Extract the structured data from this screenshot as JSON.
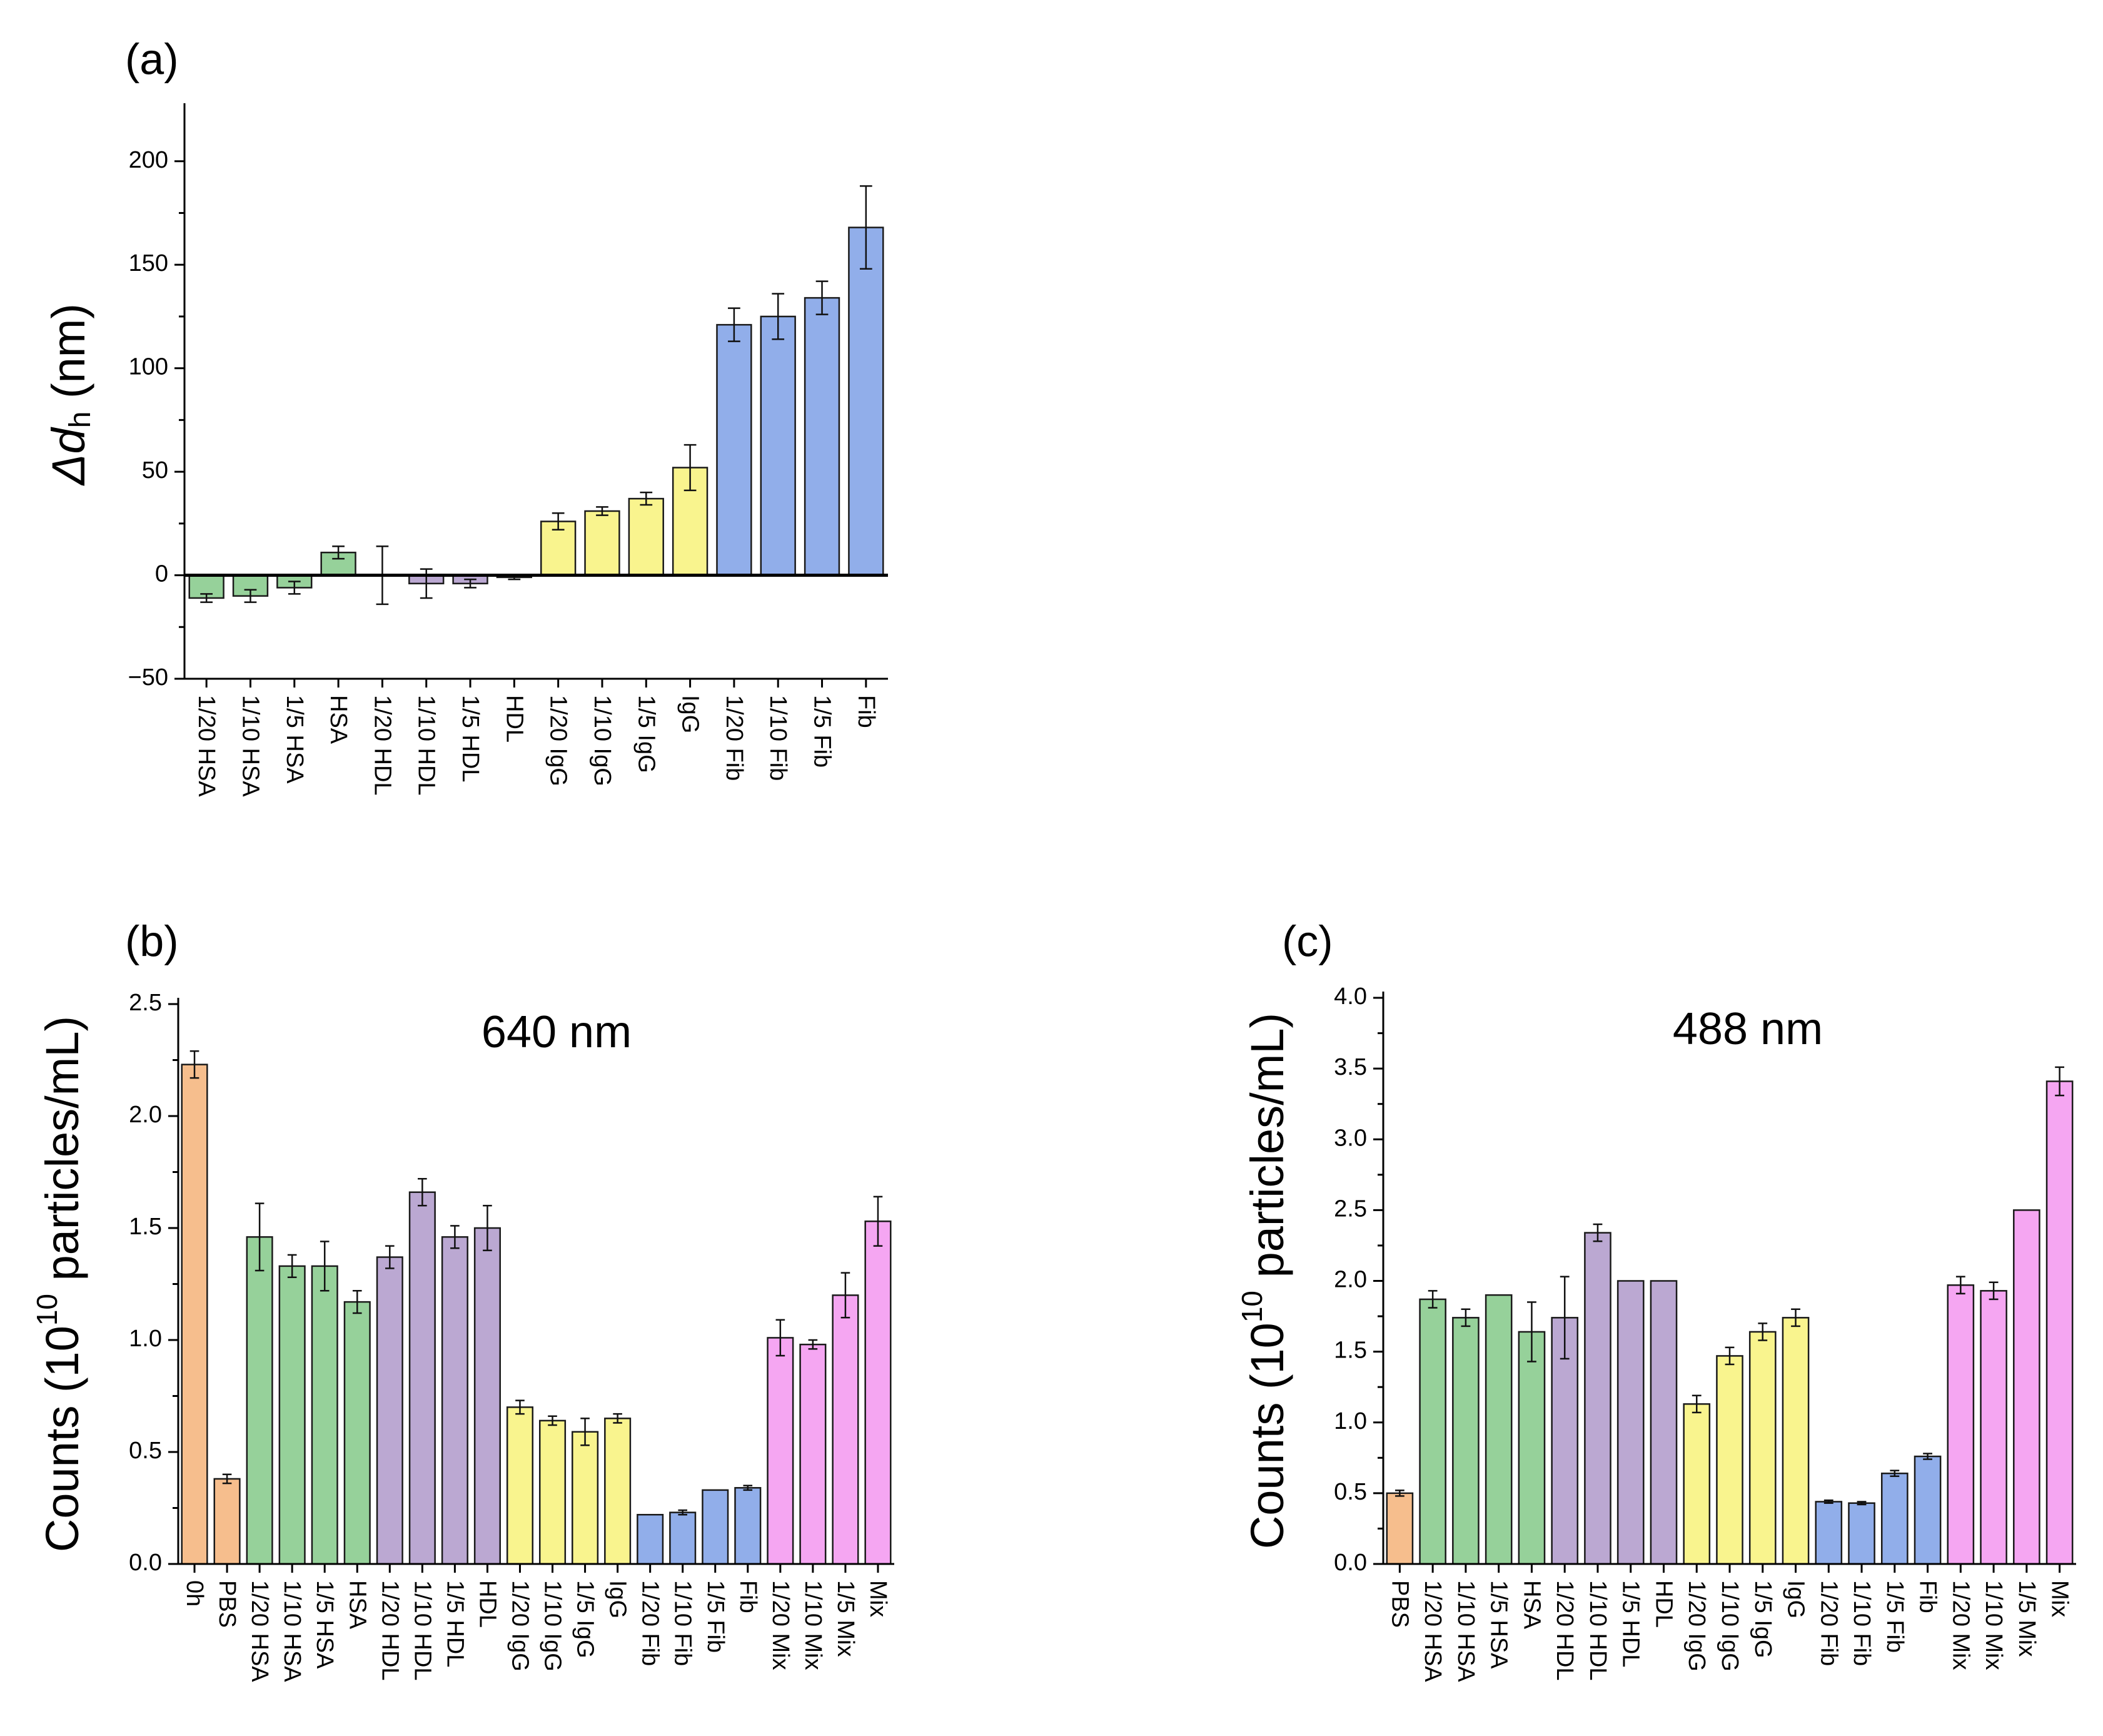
{
  "colors": {
    "orange": "#F6BE8D",
    "green": "#96D19A",
    "purple": "#BBA8D2",
    "yellow": "#F9F48E",
    "blue": "#91AEEA",
    "pink": "#F5A6F2"
  },
  "chart_data": [
    {
      "id": "a",
      "panel_label": "(a)",
      "type": "bar",
      "title": "",
      "xlabel": "",
      "ylabel": "Δd_h (nm)",
      "ylabel_parts": {
        "delta": "Δ",
        "var": "d",
        "sub": "h",
        "unit": " (nm)"
      },
      "ylim": [
        -50,
        225
      ],
      "yticks": [
        -50,
        0,
        50,
        100,
        150,
        200
      ],
      "ytick_labels": [
        "−50",
        "0",
        "50",
        "100",
        "150",
        "200"
      ],
      "zero_line": true,
      "categories": [
        "1/20 HSA",
        "1/10 HSA",
        "1/5 HSA",
        "HSA",
        "1/20 HDL",
        "1/10 HDL",
        "1/5 HDL",
        "HDL",
        "1/20 IgG",
        "1/10 IgG",
        "1/5 IgG",
        "IgG",
        "1/20 Fib",
        "1/10 Fib",
        "1/5 Fib",
        "Fib"
      ],
      "values": [
        -11,
        -10,
        -6,
        11,
        0,
        -4,
        -4,
        -1,
        26,
        31,
        37,
        52,
        121,
        125,
        134,
        168
      ],
      "errors": [
        2,
        3,
        3,
        3,
        14,
        7,
        2,
        1,
        4,
        2,
        3,
        11,
        8,
        11,
        8,
        20
      ],
      "colors": [
        "green",
        "green",
        "green",
        "green",
        "purple",
        "purple",
        "purple",
        "purple",
        "yellow",
        "yellow",
        "yellow",
        "yellow",
        "blue",
        "blue",
        "blue",
        "blue"
      ]
    },
    {
      "id": "b",
      "panel_label": "(b)",
      "type": "bar",
      "title": "640 nm",
      "xlabel": "",
      "ylabel": "Counts (10^10 particles/mL)",
      "ylabel_parts": {
        "pre": "Counts (10",
        "sup": "10",
        "post": " particles/mL)"
      },
      "ylim": [
        0,
        2.5
      ],
      "yticks": [
        0,
        0.5,
        1.0,
        1.5,
        2.0,
        2.5
      ],
      "ytick_labels": [
        "0.0",
        "0.5",
        "1.0",
        "1.5",
        "2.0",
        "2.5"
      ],
      "zero_line": false,
      "categories": [
        "0h",
        "PBS",
        "1/20 HSA",
        "1/10 HSA",
        "1/5 HSA",
        "HSA",
        "1/20 HDL",
        "1/10 HDL",
        "1/5 HDL",
        "HDL",
        "1/20 IgG",
        "1/10 IgG",
        "1/5 IgG",
        "IgG",
        "1/20 Fib",
        "1/10 Fib",
        "1/5 Fib",
        "Fib",
        "1/20 Mix",
        "1/10 Mix",
        "1/5 Mix",
        "Mix"
      ],
      "values": [
        2.23,
        0.38,
        1.46,
        1.33,
        1.33,
        1.17,
        1.37,
        1.66,
        1.46,
        1.5,
        0.7,
        0.64,
        0.59,
        0.65,
        0.22,
        0.23,
        0.33,
        0.34,
        1.01,
        0.98,
        1.2,
        1.53
      ],
      "errors": [
        0.06,
        0.02,
        0.15,
        0.05,
        0.11,
        0.05,
        0.05,
        0.06,
        0.05,
        0.1,
        0.03,
        0.02,
        0.06,
        0.02,
        0.0,
        0.01,
        0.0,
        0.01,
        0.08,
        0.02,
        0.1,
        0.11
      ],
      "colors": [
        "orange",
        "orange",
        "green",
        "green",
        "green",
        "green",
        "purple",
        "purple",
        "purple",
        "purple",
        "yellow",
        "yellow",
        "yellow",
        "yellow",
        "blue",
        "blue",
        "blue",
        "blue",
        "pink",
        "pink",
        "pink",
        "pink"
      ]
    },
    {
      "id": "c",
      "panel_label": "(c)",
      "type": "bar",
      "title": "488 nm",
      "xlabel": "",
      "ylabel": "Counts (10^10 particles/mL)",
      "ylabel_parts": {
        "pre": "Counts (10",
        "sup": "10",
        "post": " particles/mL)"
      },
      "ylim": [
        0,
        4.0
      ],
      "yticks": [
        0,
        0.5,
        1.0,
        1.5,
        2.0,
        2.5,
        3.0,
        3.5,
        4.0
      ],
      "ytick_labels": [
        "0.0",
        "0.5",
        "1.0",
        "1.5",
        "2.0",
        "2.5",
        "3.0",
        "3.5",
        "4.0"
      ],
      "zero_line": false,
      "categories": [
        "PBS",
        "1/20 HSA",
        "1/10 HSA",
        "1/5 HSA",
        "HSA",
        "1/20 HDL",
        "1/10 HDL",
        "1/5 HDL",
        "HDL",
        "1/20 IgG",
        "1/10 IgG",
        "1/5 IgG",
        "IgG",
        "1/20 Fib",
        "1/10 Fib",
        "1/5 Fib",
        "Fib",
        "1/20 Mix",
        "1/10 Mix",
        "1/5 Mix",
        "Mix"
      ],
      "values": [
        0.5,
        1.87,
        1.74,
        1.9,
        1.64,
        1.74,
        2.34,
        2.0,
        2.0,
        1.13,
        1.47,
        1.64,
        1.74,
        0.44,
        0.43,
        0.64,
        0.76,
        1.97,
        1.93,
        2.5,
        3.41
      ],
      "errors": [
        0.02,
        0.06,
        0.06,
        0.0,
        0.21,
        0.29,
        0.06,
        0.0,
        0.0,
        0.06,
        0.06,
        0.06,
        0.06,
        0.01,
        0.01,
        0.02,
        0.02,
        0.06,
        0.06,
        0.0,
        0.1
      ],
      "colors": [
        "orange",
        "green",
        "green",
        "green",
        "green",
        "purple",
        "purple",
        "purple",
        "purple",
        "yellow",
        "yellow",
        "yellow",
        "yellow",
        "blue",
        "blue",
        "blue",
        "blue",
        "pink",
        "pink",
        "pink",
        "pink"
      ]
    }
  ]
}
